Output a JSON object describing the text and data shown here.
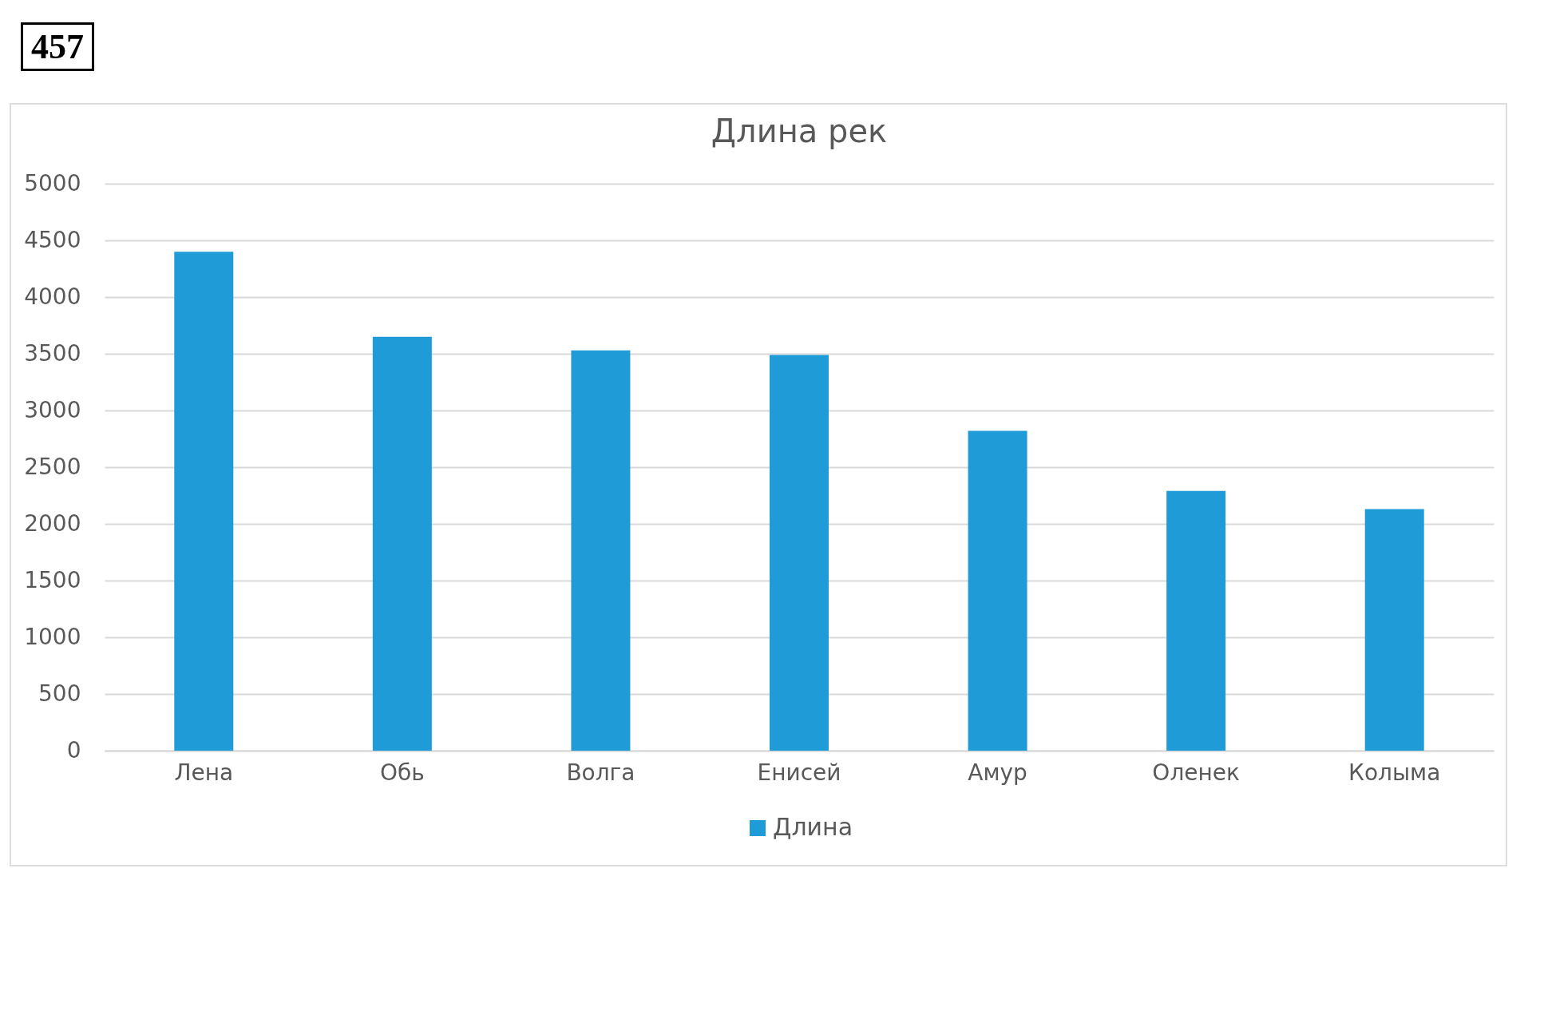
{
  "chart_data": {
    "type": "bar",
    "title": "Длина рек",
    "annotations": [
      "457"
    ],
    "categories": [
      "Лена",
      "Обь",
      "Волга",
      "Енисей",
      "Амур",
      "Оленек",
      "Колыма"
    ],
    "series": [
      {
        "name": "Длина",
        "color": "#1f9bd7",
        "values": [
          4400,
          3650,
          3530,
          3490,
          2820,
          2290,
          2130
        ]
      }
    ],
    "ylim": [
      0,
      5000
    ],
    "yticks": [
      0,
      500,
      1000,
      1500,
      2000,
      2500,
      3000,
      3500,
      4000,
      4500,
      5000
    ],
    "grid": "y",
    "legend": "bottom"
  }
}
